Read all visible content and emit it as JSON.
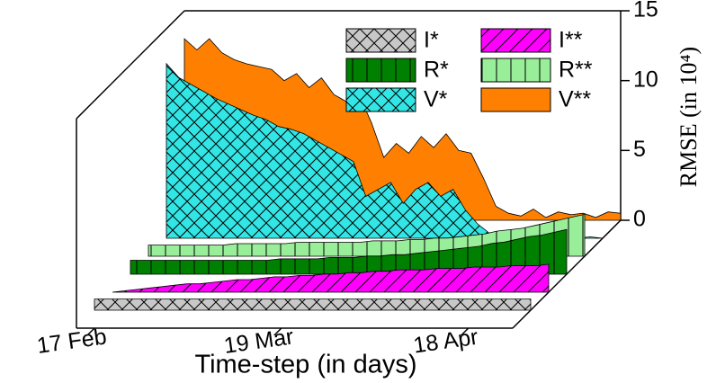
{
  "chart_data": {
    "type": "area3d",
    "x_label": "Time-step (in days)",
    "y_label": "RMSE (in 10⁴)",
    "x": [
      0,
      2,
      4,
      6,
      8,
      10,
      12,
      14,
      16,
      18,
      20,
      22,
      24,
      26,
      28,
      30,
      32,
      34,
      36,
      38,
      40,
      42,
      44,
      46,
      48,
      50,
      52,
      54,
      56,
      58,
      60,
      62,
      64,
      66,
      68,
      70
    ],
    "xlim": [
      0,
      70
    ],
    "xticks": [
      {
        "value": 0,
        "label": "17 Feb"
      },
      {
        "value": 30,
        "label": "19 Mar"
      },
      {
        "value": 60,
        "label": "18 Apr"
      }
    ],
    "ylim": [
      0,
      15
    ],
    "yticks": [
      0,
      5,
      10,
      15
    ],
    "series": [
      {
        "name": "I*",
        "color": "#c8c8c8",
        "hatch": "cross",
        "values": [
          0.8,
          0.8,
          0.8,
          0.8,
          0.8,
          0.8,
          0.8,
          0.8,
          0.8,
          0.8,
          0.8,
          0.8,
          0.8,
          0.8,
          0.8,
          0.8,
          0.8,
          0.8,
          0.8,
          0.8,
          0.8,
          0.8,
          0.8,
          0.8,
          0.8,
          0.8,
          0.8,
          0.8,
          0.8,
          0.8,
          0.8,
          0.8,
          0.8,
          0.8,
          0.8,
          0.8
        ]
      },
      {
        "name": "I**",
        "color": "#ff00ff",
        "hatch": "diag",
        "values": [
          0.0,
          0.1,
          0.2,
          0.3,
          0.4,
          0.5,
          0.6,
          0.6,
          0.7,
          0.8,
          0.9,
          0.9,
          1.0,
          1.1,
          1.1,
          1.2,
          1.2,
          1.3,
          1.3,
          1.4,
          1.4,
          1.5,
          1.5,
          1.6,
          1.6,
          1.6,
          1.7,
          1.7,
          1.7,
          1.8,
          1.8,
          1.8,
          1.9,
          1.9,
          1.9,
          2.0
        ]
      },
      {
        "name": "R*",
        "color": "#008000",
        "hatch": "vert",
        "values": [
          1.0,
          1.0,
          1.0,
          1.0,
          1.0,
          1.0,
          1.0,
          1.0,
          1.0,
          1.0,
          1.0,
          1.0,
          1.1,
          1.1,
          1.1,
          1.1,
          1.2,
          1.2,
          1.2,
          1.3,
          1.3,
          1.4,
          1.4,
          1.5,
          1.6,
          1.7,
          1.8,
          1.9,
          2.0,
          2.2,
          2.3,
          2.5,
          2.7,
          2.8,
          3.0,
          3.2
        ]
      },
      {
        "name": "R**",
        "color": "#99ee99",
        "hatch": "vert",
        "values": [
          0.8,
          0.8,
          0.8,
          0.8,
          0.8,
          0.8,
          0.8,
          0.9,
          0.9,
          0.9,
          0.9,
          0.9,
          1.0,
          1.0,
          1.0,
          1.0,
          1.0,
          1.0,
          1.1,
          1.1,
          1.1,
          1.2,
          1.2,
          1.3,
          1.3,
          1.4,
          1.5,
          1.6,
          1.8,
          1.9,
          2.0,
          2.2,
          2.4,
          2.6,
          2.8,
          3.0
        ]
      },
      {
        "name": "V*",
        "color": "#33e6e6",
        "hatch": "cross",
        "values": [
          12.5,
          11.5,
          11.0,
          10.5,
          10.0,
          9.6,
          9.2,
          8.8,
          8.5,
          8.0,
          7.8,
          7.5,
          7.0,
          6.5,
          6.0,
          5.5,
          3.0,
          3.5,
          4.0,
          2.5,
          3.5,
          4.0,
          3.0,
          3.5,
          2.0,
          1.0,
          0.3,
          0.1,
          0.2,
          0.0,
          0.1,
          0.0,
          0.3,
          0.0,
          0.1,
          0.0
        ]
      },
      {
        "name": "V**",
        "color": "#ff8000",
        "hatch": "none",
        "values": [
          13.0,
          12.2,
          13.0,
          12.0,
          11.5,
          11.2,
          11.0,
          10.8,
          10.0,
          10.5,
          9.5,
          10.2,
          9.0,
          8.5,
          9.0,
          7.0,
          4.5,
          5.5,
          4.8,
          6.0,
          5.2,
          6.2,
          5.0,
          4.8,
          3.0,
          1.0,
          0.5,
          0.3,
          0.8,
          0.2,
          0.6,
          0.4,
          0.5,
          0.2,
          0.6,
          0.5
        ]
      }
    ]
  }
}
